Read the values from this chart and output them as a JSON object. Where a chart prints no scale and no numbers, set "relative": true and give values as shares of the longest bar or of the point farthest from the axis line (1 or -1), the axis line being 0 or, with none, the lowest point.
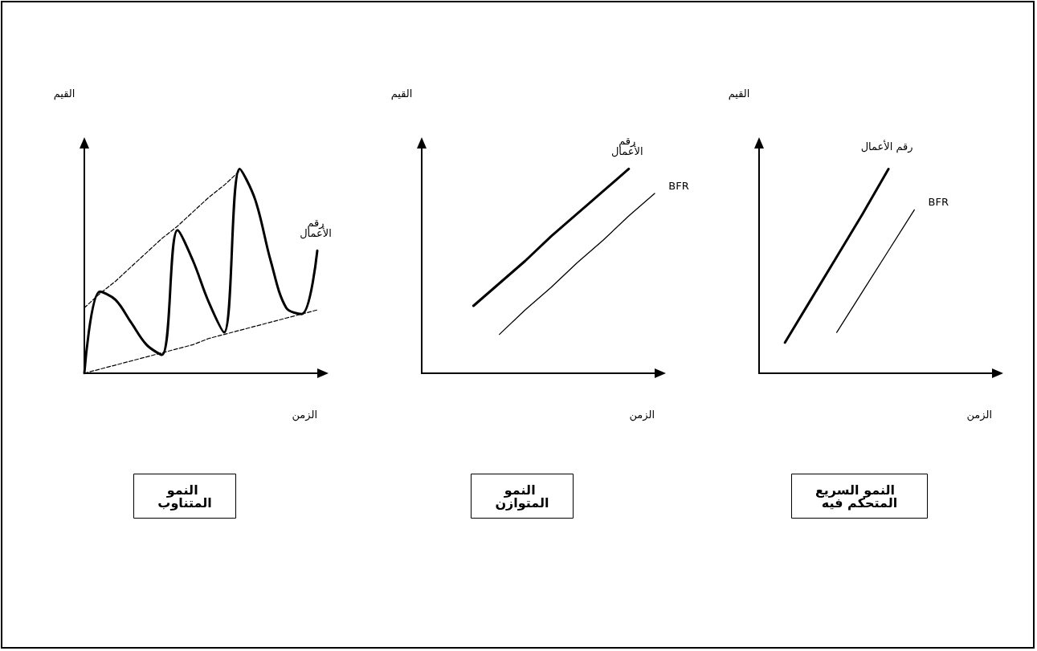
{
  "chart_data": [
    {
      "type": "line",
      "title": "النمو السريع  المتحكم فيه",
      "xlabel": "الزمن",
      "ylabel": "القيم",
      "relative": true,
      "grid": false,
      "legend": false,
      "tick_labels": false,
      "marker": "none",
      "categories": [
        null,
        null,
        null,
        null,
        null,
        null,
        null,
        null,
        null,
        null
      ],
      "series": [
        {
          "name": "رقم الأعمال",
          "color": "#000000",
          "values": [
            null,
            0.15,
            0.36,
            0.57,
            0.78,
            1,
            null,
            null,
            null,
            null
          ]
        },
        {
          "name": "BFR",
          "color": "#000000",
          "values": [
            null,
            null,
            null,
            0.2,
            0.4,
            0.6,
            0.8,
            null,
            null,
            null
          ]
        }
      ]
    },
    {
      "type": "line",
      "title": "النمو المتوازن",
      "xlabel": "الزمن",
      "ylabel": "القيم",
      "relative": true,
      "grid": false,
      "legend": false,
      "tick_labels": false,
      "marker": "none",
      "categories": [
        null,
        null,
        null,
        null,
        null,
        null,
        null,
        null,
        null,
        null
      ],
      "series": [
        {
          "name": "رقم الأعمال",
          "color": "#000000",
          "values": [
            null,
            null,
            0.33,
            0.44,
            0.55,
            0.67,
            0.78,
            0.89,
            1,
            null
          ]
        },
        {
          "name": "BFR",
          "color": "#000000",
          "values": [
            null,
            null,
            null,
            0.19,
            0.31,
            0.42,
            0.54,
            0.65,
            0.77,
            0.88
          ]
        }
      ]
    },
    {
      "type": "line",
      "title": "النمو المتناوب",
      "xlabel": "الزمن",
      "ylabel": "القيم",
      "relative": true,
      "grid": false,
      "legend": false,
      "tick_labels": false,
      "marker": "none",
      "categories": [
        null,
        null,
        null,
        null,
        null,
        null,
        null,
        null,
        null,
        null,
        null,
        null,
        null,
        null,
        null,
        null
      ],
      "series": [
        {
          "name": "رقم الأعمال",
          "color": "#000000",
          "values": [
            0,
            0.4,
            0.36,
            0.25,
            0.14,
            0.09,
            0.7,
            0.55,
            0.35,
            0.2,
            1,
            0.85,
            0.55,
            0.32,
            0.29,
            0.6
          ]
        },
        {
          "color": "#000000",
          "line_style": "dashed",
          "values": [
            0.32,
            0.39,
            0.45,
            0.52,
            0.59,
            0.66,
            0.72,
            0.79,
            0.86,
            0.92,
            0.99,
            null,
            null,
            null,
            null,
            null
          ]
        },
        {
          "color": "#000000",
          "line_style": "dashed",
          "values": [
            0,
            0.02,
            0.04,
            0.06,
            0.08,
            0.1,
            0.12,
            0.14,
            0.17,
            0.19,
            0.21,
            0.23,
            0.25,
            0.27,
            0.29,
            0.31
          ]
        }
      ]
    }
  ]
}
